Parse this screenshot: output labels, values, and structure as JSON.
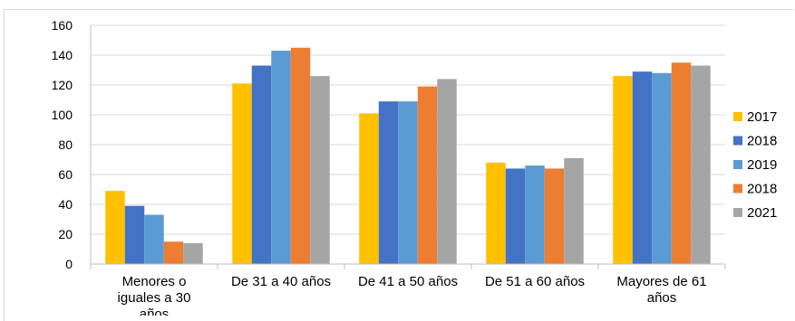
{
  "chart_data": {
    "type": "bar",
    "title": "",
    "xlabel": "",
    "ylabel": "",
    "ylim": [
      0,
      160
    ],
    "yticks": [
      0,
      20,
      40,
      60,
      80,
      100,
      120,
      140,
      160
    ],
    "grid": true,
    "legend_position": "right",
    "categories": [
      [
        "Menores o",
        "iguales a 30",
        "años"
      ],
      [
        "De 31 a 40 años"
      ],
      [
        "De 41 a 50 años"
      ],
      [
        "De 51 a 60 años"
      ],
      [
        "Mayores de 61",
        "años"
      ]
    ],
    "series": [
      {
        "name": "2017",
        "color": "#FFC000",
        "values": [
          49,
          121,
          101,
          68,
          126
        ]
      },
      {
        "name": "2018",
        "color": "#4472C4",
        "values": [
          39,
          133,
          109,
          64,
          129
        ]
      },
      {
        "name": "2019",
        "color": "#5B9BD5",
        "values": [
          33,
          143,
          109,
          66,
          128
        ]
      },
      {
        "name": "2018",
        "color": "#ED7D31",
        "values": [
          15,
          145,
          119,
          64,
          135
        ]
      },
      {
        "name": "2021",
        "color": "#A5A5A5",
        "values": [
          14,
          126,
          124,
          71,
          133
        ]
      }
    ]
  }
}
